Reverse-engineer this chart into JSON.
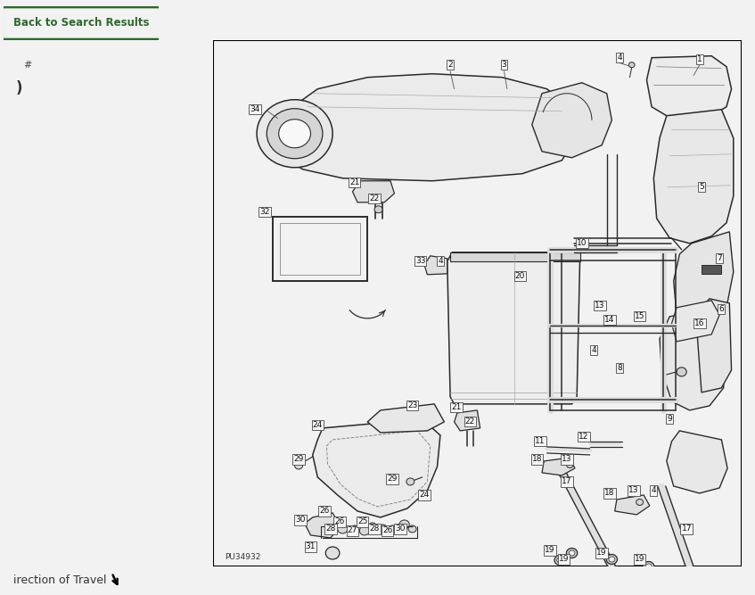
{
  "bg_color": "#f2f2f2",
  "diagram_bg": "#ffffff",
  "header_text": "Back to Search Results",
  "header_text_color": "#2d6a2d",
  "header_border_color": "#2d6a2d",
  "part_number_label": "PU34932",
  "footer_text": "irection of Travel",
  "fs": 6.5,
  "lc": "#2a2a2a",
  "lw": 1.0
}
